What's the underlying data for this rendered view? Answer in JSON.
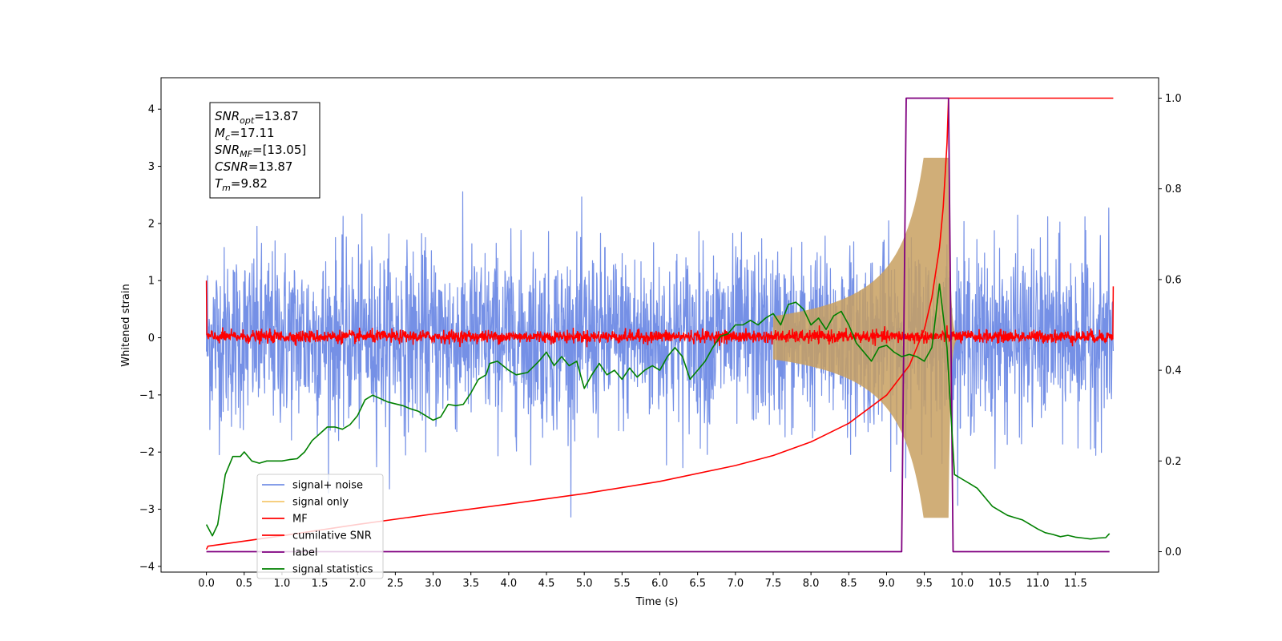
{
  "chart_data": {
    "type": "line",
    "title": "",
    "xlabel": "Time (s)",
    "ylabel": "Whitened strain",
    "ylabel_right": "",
    "xlim": [
      -0.6,
      12.6
    ],
    "ylim": [
      -4.1,
      4.55
    ],
    "ylim_right": [
      -0.045,
      1.045
    ],
    "x_ticks": [
      0.0,
      0.5,
      1.0,
      1.5,
      2.0,
      2.5,
      3.0,
      3.5,
      4.0,
      4.5,
      5.0,
      5.5,
      6.0,
      6.5,
      7.0,
      7.5,
      8.0,
      8.5,
      9.0,
      9.5,
      10.0,
      10.5,
      11.0,
      11.5
    ],
    "x_tick_labels": [
      "0.0",
      "0.5",
      "1.0",
      "1.5",
      "2.0",
      "2.5",
      "3.0",
      "3.5",
      "4.0",
      "4.5",
      "5.0",
      "5.5",
      "6.0",
      "6.5",
      "7.0",
      "7.5",
      "8.0",
      "8.5",
      "9.0",
      "9.5",
      "10.0",
      "10.5",
      "11.0",
      "11.5"
    ],
    "y_ticks": [
      -4,
      -3,
      -2,
      -1,
      0,
      1,
      2,
      3,
      4
    ],
    "y_tick_labels": [
      "−4",
      "−3",
      "−2",
      "−1",
      "0",
      "1",
      "2",
      "3",
      "4"
    ],
    "y_ticks_right": [
      0.0,
      0.2,
      0.4,
      0.6,
      0.8,
      1.0
    ],
    "y_tick_labels_right": [
      "0.0",
      "0.2",
      "0.4",
      "0.6",
      "0.8",
      "1.0"
    ],
    "grid": false,
    "legend_position": "lower-left",
    "legend": [
      {
        "label": "signal+ noise",
        "color": "#7590e6"
      },
      {
        "label": "signal only",
        "color": "#f5c86e"
      },
      {
        "label": "MF",
        "color": "#ff0000"
      },
      {
        "label": "cumilative SNR",
        "color": "#ff0000"
      },
      {
        "label": "label",
        "color": "#800080"
      },
      {
        "label": "signal statistics",
        "color": "#008000"
      }
    ],
    "annotation": {
      "lines": [
        {
          "sym": "SNR",
          "sub": "opt",
          "val": "=13.87"
        },
        {
          "sym": "M",
          "sub": "c",
          "val": "=17.11"
        },
        {
          "sym": "SNR",
          "sub": "MF",
          "val": "=[13.05]"
        },
        {
          "sym": "CSNR",
          "sub": "",
          "val": "=13.87"
        },
        {
          "sym": "T",
          "sub": "m",
          "val": "=9.82"
        }
      ]
    },
    "series": [
      {
        "name": "signal+ noise",
        "axis": "left",
        "color": "#7590e6",
        "noise_std": 0.78,
        "range": [
          0.0,
          12.0
        ]
      },
      {
        "name": "signal only",
        "axis": "left",
        "color": "#c8a060",
        "envelope": {
          "t_merge": 9.82,
          "peak": 3.15
        }
      },
      {
        "name": "MF",
        "axis": "left",
        "color": "#ff0000",
        "noise_std": 0.055,
        "range": [
          0.0,
          12.0
        ]
      },
      {
        "name": "cumilative SNR",
        "axis": "right",
        "x": [
          0.0,
          0.02,
          1.0,
          2.0,
          3.0,
          4.0,
          5.0,
          6.0,
          7.0,
          7.5,
          8.0,
          8.5,
          9.0,
          9.3,
          9.5,
          9.6,
          9.7,
          9.75,
          9.8,
          9.82,
          9.83,
          12.0
        ],
        "y": [
          0.005,
          0.012,
          0.035,
          0.06,
          0.083,
          0.105,
          0.128,
          0.155,
          0.19,
          0.212,
          0.242,
          0.283,
          0.345,
          0.41,
          0.49,
          0.56,
          0.67,
          0.76,
          0.9,
          1.0,
          1.0,
          1.0
        ]
      },
      {
        "name": "label",
        "axis": "right",
        "color": "#800080",
        "x": [
          0.0,
          9.2,
          9.26,
          9.82,
          9.88,
          11.95
        ],
        "y": [
          0.0,
          0.0,
          1.0,
          1.0,
          0.0,
          0.0
        ]
      },
      {
        "name": "signal statistics",
        "axis": "right",
        "color": "#008000",
        "x": [
          0.0,
          0.08,
          0.15,
          0.25,
          0.35,
          0.45,
          0.5,
          0.6,
          0.7,
          0.8,
          0.9,
          1.0,
          1.1,
          1.2,
          1.3,
          1.4,
          1.5,
          1.6,
          1.7,
          1.8,
          1.9,
          2.0,
          2.1,
          2.15,
          2.2,
          2.4,
          2.6,
          2.7,
          2.8,
          2.9,
          3.0,
          3.1,
          3.2,
          3.3,
          3.4,
          3.5,
          3.6,
          3.7,
          3.75,
          3.85,
          4.0,
          4.1,
          4.25,
          4.4,
          4.5,
          4.6,
          4.7,
          4.8,
          4.9,
          5.0,
          5.1,
          5.2,
          5.3,
          5.4,
          5.5,
          5.6,
          5.7,
          5.8,
          5.9,
          6.0,
          6.1,
          6.2,
          6.3,
          6.4,
          6.5,
          6.6,
          6.7,
          6.8,
          6.9,
          7.0,
          7.1,
          7.2,
          7.3,
          7.4,
          7.5,
          7.6,
          7.7,
          7.8,
          7.9,
          8.0,
          8.1,
          8.2,
          8.3,
          8.4,
          8.5,
          8.6,
          8.7,
          8.8,
          8.9,
          9.0,
          9.1,
          9.2,
          9.3,
          9.4,
          9.5,
          9.6,
          9.65,
          9.7,
          9.8,
          9.9,
          10.0,
          10.1,
          10.2,
          10.3,
          10.4,
          10.5,
          10.6,
          10.7,
          10.8,
          10.9,
          11.0,
          11.1,
          11.2,
          11.3,
          11.4,
          11.5,
          11.6,
          11.7,
          11.8,
          11.9,
          11.95
        ],
        "y": [
          0.06,
          0.035,
          0.06,
          0.17,
          0.21,
          0.21,
          0.22,
          0.2,
          0.195,
          0.2,
          0.2,
          0.2,
          0.203,
          0.205,
          0.22,
          0.245,
          0.26,
          0.275,
          0.275,
          0.27,
          0.28,
          0.3,
          0.335,
          0.34,
          0.345,
          0.33,
          0.322,
          0.315,
          0.31,
          0.3,
          0.29,
          0.297,
          0.325,
          0.322,
          0.325,
          0.35,
          0.38,
          0.39,
          0.415,
          0.42,
          0.4,
          0.39,
          0.395,
          0.42,
          0.44,
          0.41,
          0.43,
          0.41,
          0.42,
          0.36,
          0.39,
          0.415,
          0.39,
          0.4,
          0.38,
          0.405,
          0.385,
          0.4,
          0.41,
          0.4,
          0.43,
          0.45,
          0.43,
          0.38,
          0.4,
          0.42,
          0.45,
          0.475,
          0.48,
          0.5,
          0.5,
          0.51,
          0.5,
          0.515,
          0.525,
          0.5,
          0.545,
          0.55,
          0.535,
          0.5,
          0.515,
          0.49,
          0.52,
          0.53,
          0.5,
          0.46,
          0.44,
          0.42,
          0.45,
          0.455,
          0.44,
          0.43,
          0.435,
          0.43,
          0.42,
          0.45,
          0.52,
          0.59,
          0.45,
          0.17,
          0.16,
          0.15,
          0.14,
          0.12,
          0.1,
          0.09,
          0.08,
          0.075,
          0.07,
          0.06,
          0.05,
          0.042,
          0.038,
          0.033,
          0.036,
          0.032,
          0.03,
          0.028,
          0.03,
          0.031,
          0.04
        ]
      }
    ]
  }
}
